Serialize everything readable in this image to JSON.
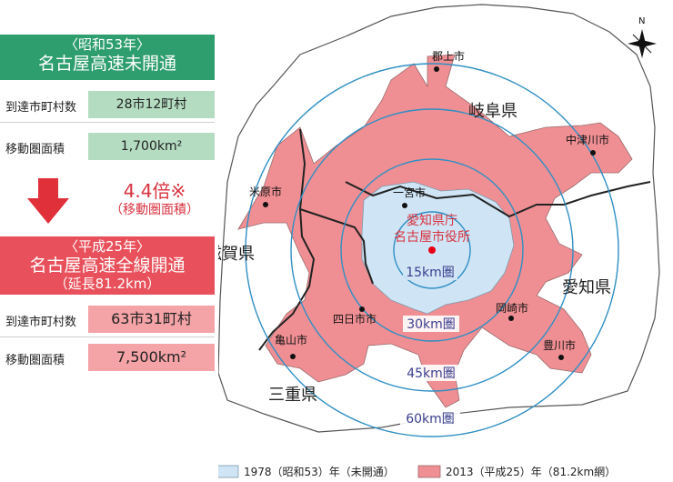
{
  "panel": {
    "before": {
      "line1": "〈昭和53年〉",
      "line2": "名古屋高速未開通",
      "rows": [
        {
          "label": "到達市町村数",
          "value": "28市12町村"
        },
        {
          "label": "移動圏面積",
          "value": "1,700km²"
        }
      ]
    },
    "ratio": {
      "value": "4.4倍※",
      "note": "（移動圏面積）"
    },
    "after": {
      "line1": "〈平成25年〉",
      "line2": "名古屋高速全線開通",
      "line3": "（延長81.2km）",
      "rows": [
        {
          "label": "到達市町村数",
          "value": "63市31町村"
        },
        {
          "label": "移動圏面積",
          "value": "7,500km²"
        }
      ]
    }
  },
  "map": {
    "center_label": [
      "愛知県庁",
      "名古屋市役所"
    ],
    "prefectures": [
      "岐阜県",
      "滋賀県",
      "愛知県",
      "三重県"
    ],
    "cities": [
      "郡上市",
      "中津川市",
      "米原市",
      "一宮市",
      "四日市市",
      "岡崎市",
      "亀山市",
      "豊川市"
    ],
    "rings": [
      "15km圏",
      "30km圏",
      "45km圏",
      "60km圏"
    ],
    "compass": "N",
    "colors": {
      "area_1978": "#cfe5f5",
      "area_2013": "#f08f93",
      "rings": "#2f8fc4",
      "center": "#e60012"
    }
  },
  "legend": [
    {
      "label": "1978（昭和53）年（未開通）",
      "color": "#cfe5f5"
    },
    {
      "label": "2013（平成25）年（81.2km網）",
      "color": "#f08f93"
    }
  ]
}
